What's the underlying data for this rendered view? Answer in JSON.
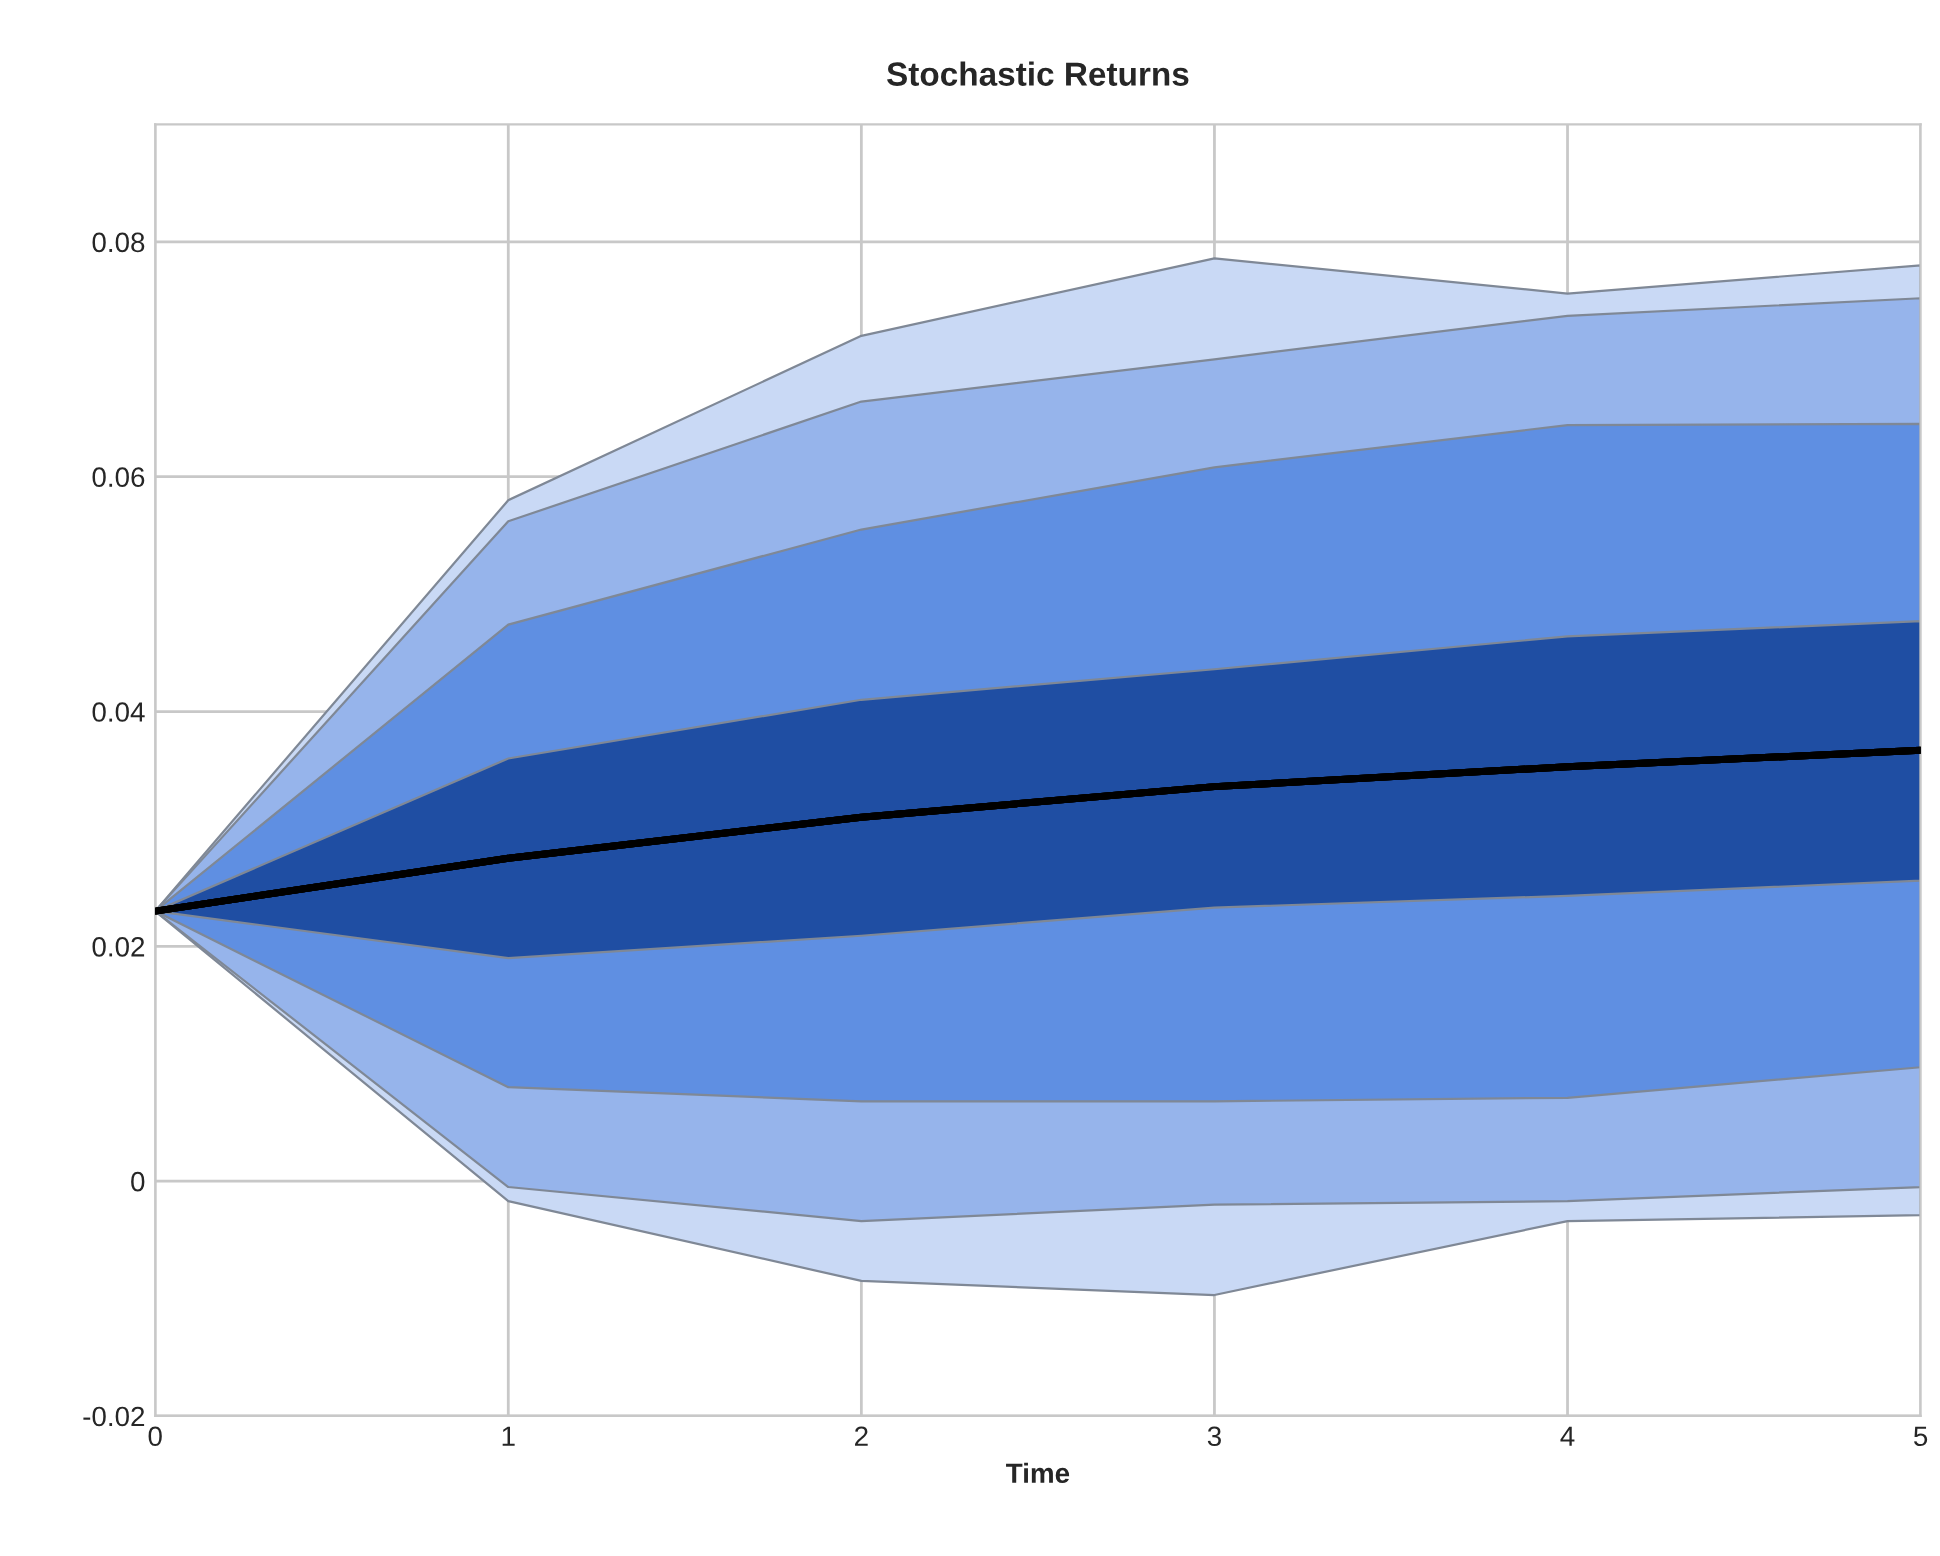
{
  "chart_data": {
    "type": "line",
    "title": "Stochastic Returns",
    "xlabel": "Time",
    "x": [
      0,
      1,
      2,
      3,
      4,
      5
    ],
    "colors": [
      "#c9d9f5",
      "#96b4eb",
      "#5f8fe2",
      "#1f4ea3"
    ],
    "series": [
      {
        "color": "#000000",
        "values": [
          0.023,
          0.0275,
          0.031,
          0.0336,
          0.0353,
          0.0367
        ],
        "upper": [
          0.023,
          0.058,
          0.072,
          0.0786,
          0.0756,
          0.078
        ],
        "lower": [
          0.023,
          -0.0017,
          -0.0085,
          -0.0097,
          -0.0034,
          -0.0029
        ]
      },
      {
        "color": "#000000",
        "values": [
          0.023,
          0.0275,
          0.031,
          0.0336,
          0.0353,
          0.0367
        ],
        "upper": [
          0.023,
          0.0562,
          0.0664,
          0.07,
          0.0737,
          0.0752
        ],
        "lower": [
          0.023,
          -0.0005,
          -0.0034,
          -0.002,
          -0.0017,
          -0.0005
        ]
      },
      {
        "color": "#000000",
        "values": [
          0.023,
          0.0275,
          0.031,
          0.0336,
          0.0353,
          0.0367
        ],
        "upper": [
          0.023,
          0.0474,
          0.0555,
          0.0608,
          0.0644,
          0.0645
        ],
        "lower": [
          0.023,
          0.008,
          0.0068,
          0.0068,
          0.0071,
          0.0097
        ]
      },
      {
        "color": "#000000",
        "values": [
          0.023,
          0.0275,
          0.031,
          0.0336,
          0.0353,
          0.0367
        ],
        "upper": [
          0.023,
          0.036,
          0.041,
          0.0436,
          0.0464,
          0.0477
        ],
        "lower": [
          0.023,
          0.019,
          0.0209,
          0.0233,
          0.0243,
          0.0256
        ]
      }
    ],
    "xlim": [
      0,
      5
    ],
    "xticks": [
      0,
      1,
      2,
      3,
      4,
      5
    ],
    "ylim": [
      -0.02,
      0.09
    ],
    "yticks": [
      -0.02,
      0,
      0.02,
      0.04,
      0.06,
      0.08
    ],
    "grid": true
  }
}
